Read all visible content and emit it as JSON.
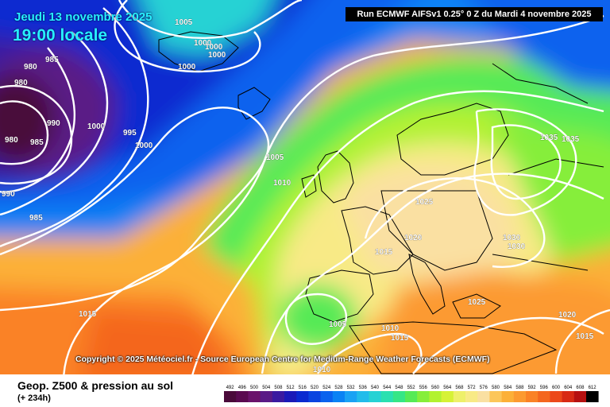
{
  "header": {
    "date": "Jeudi 13 novembre 2025",
    "local_time": "19:00 locale",
    "run_info": "Run ECMWF AIFSv1 0.25° 0 Z du Mardi 4 novembre 2025"
  },
  "map": {
    "copyright": "Copyright © 2025 Météociel.fr - Source European Centre for Medium-Range Weather Forecasts (ECMWF)",
    "pressure_labels": [
      "1005",
      "1000",
      "1000",
      "1000",
      "1000",
      "980",
      "985",
      "980",
      "990",
      "1000",
      "995",
      "980",
      "985",
      "1000",
      "990",
      "985",
      "1005",
      "1010",
      "1025",
      "1020",
      "1015",
      "1030",
      "1030",
      "1035",
      "1035",
      "1015",
      "1005",
      "1010",
      "1015",
      "1025",
      "1020",
      "1015",
      "1010"
    ]
  },
  "footer": {
    "product": "Geop. Z500 & pression au sol",
    "lead_time": "(+ 234h)"
  },
  "legend": {
    "values": [
      "492",
      "496",
      "500",
      "504",
      "508",
      "512",
      "516",
      "520",
      "524",
      "528",
      "532",
      "536",
      "540",
      "544",
      "548",
      "552",
      "556",
      "560",
      "564",
      "568",
      "572",
      "576",
      "580",
      "584",
      "588",
      "592",
      "596",
      "600",
      "604",
      "608",
      "612"
    ],
    "colors": [
      "#4a0a3a",
      "#5a0a50",
      "#6a126a",
      "#5a1a86",
      "#3a1aa0",
      "#1a1ab8",
      "#0a2ad0",
      "#0a44e0",
      "#0a62ee",
      "#0a82f4",
      "#1aa2f4",
      "#22bcea",
      "#26d2d4",
      "#2ae0b0",
      "#36e686",
      "#56ea56",
      "#86ee3a",
      "#b2f230",
      "#d6f236",
      "#eef06a",
      "#f8ea86",
      "#fae0a2",
      "#fcc65a",
      "#fcb038",
      "#fc9a30",
      "#fa8226",
      "#f4661e",
      "#ec481a",
      "#d82a14",
      "#b61010",
      "#000000"
    ]
  }
}
